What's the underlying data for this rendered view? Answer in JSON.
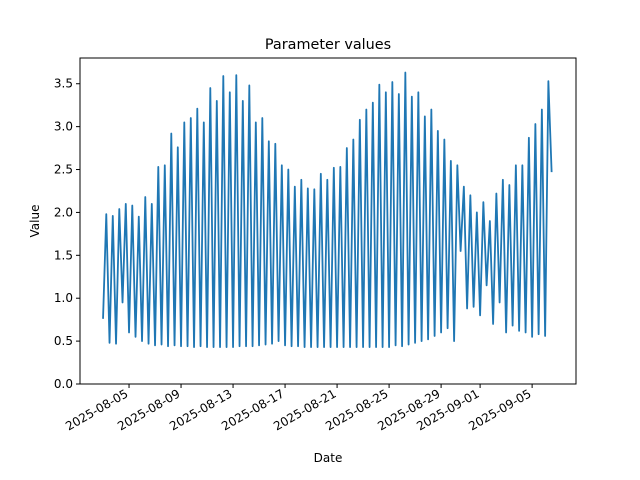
{
  "chart_data": {
    "type": "line",
    "title": "Parameter values",
    "x_label": "Date",
    "y_label": "Value",
    "xlim": [
      "2025-08-01 05:30",
      "2025-09-08 09:00"
    ],
    "xticks": [
      "2025-08-05",
      "2025-08-09",
      "2025-08-13",
      "2025-08-17",
      "2025-08-21",
      "2025-08-25",
      "2025-08-29",
      "2025-09-01",
      "2025-09-05"
    ],
    "ylim": [
      0,
      3.8
    ],
    "yticks": [
      {
        "value": 0,
        "label": "0.0"
      },
      0.5,
      {
        "value": 1,
        "label": "1.0"
      },
      1.5,
      {
        "value": 2,
        "label": "2.0"
      },
      2.5,
      {
        "value": 3,
        "label": "3.0"
      },
      3.5
    ],
    "series": [
      {
        "color": "#1f77b4",
        "x": [
          "2025-08-03 00:00",
          "2025-08-03 06:00",
          "2025-08-03 12:00",
          "2025-08-03 18:00",
          "2025-08-04 00:00",
          "2025-08-04 06:00",
          "2025-08-04 12:00",
          "2025-08-04 18:00",
          "2025-08-05 00:00",
          "2025-08-05 06:00",
          "2025-08-05 12:00",
          "2025-08-05 18:00",
          "2025-08-06 00:00",
          "2025-08-06 06:00",
          "2025-08-06 12:00",
          "2025-08-06 18:00",
          "2025-08-07 00:00",
          "2025-08-07 06:00",
          "2025-08-07 12:00",
          "2025-08-07 18:00",
          "2025-08-08 00:00",
          "2025-08-08 06:00",
          "2025-08-08 12:00",
          "2025-08-08 18:00",
          "2025-08-09 00:00",
          "2025-08-09 06:00",
          "2025-08-09 12:00",
          "2025-08-09 18:00",
          "2025-08-10 00:00",
          "2025-08-10 06:00",
          "2025-08-10 12:00",
          "2025-08-10 18:00",
          "2025-08-11 00:00",
          "2025-08-11 06:00",
          "2025-08-11 12:00",
          "2025-08-11 18:00",
          "2025-08-12 00:00",
          "2025-08-12 06:00",
          "2025-08-12 12:00",
          "2025-08-12 18:00",
          "2025-08-13 00:00",
          "2025-08-13 06:00",
          "2025-08-13 12:00",
          "2025-08-13 18:00",
          "2025-08-14 00:00",
          "2025-08-14 06:00",
          "2025-08-14 12:00",
          "2025-08-14 18:00",
          "2025-08-15 00:00",
          "2025-08-15 06:00",
          "2025-08-15 12:00",
          "2025-08-15 18:00",
          "2025-08-16 00:00",
          "2025-08-16 06:00",
          "2025-08-16 12:00",
          "2025-08-16 18:00",
          "2025-08-17 00:00",
          "2025-08-17 06:00",
          "2025-08-17 12:00",
          "2025-08-17 18:00",
          "2025-08-18 00:00",
          "2025-08-18 06:00",
          "2025-08-18 12:00",
          "2025-08-18 18:00",
          "2025-08-19 00:00",
          "2025-08-19 06:00",
          "2025-08-19 12:00",
          "2025-08-19 18:00",
          "2025-08-20 00:00",
          "2025-08-20 06:00",
          "2025-08-20 12:00",
          "2025-08-20 18:00",
          "2025-08-21 00:00",
          "2025-08-21 06:00",
          "2025-08-21 12:00",
          "2025-08-21 18:00",
          "2025-08-22 00:00",
          "2025-08-22 06:00",
          "2025-08-22 12:00",
          "2025-08-22 18:00",
          "2025-08-23 00:00",
          "2025-08-23 06:00",
          "2025-08-23 12:00",
          "2025-08-23 18:00",
          "2025-08-24 00:00",
          "2025-08-24 06:00",
          "2025-08-24 12:00",
          "2025-08-24 18:00",
          "2025-08-25 00:00",
          "2025-08-25 06:00",
          "2025-08-25 12:00",
          "2025-08-25 18:00",
          "2025-08-26 00:00",
          "2025-08-26 06:00",
          "2025-08-26 12:00",
          "2025-08-26 18:00",
          "2025-08-27 00:00",
          "2025-08-27 06:00",
          "2025-08-27 12:00",
          "2025-08-27 18:00",
          "2025-08-28 00:00",
          "2025-08-28 06:00",
          "2025-08-28 12:00",
          "2025-08-28 18:00",
          "2025-08-29 00:00",
          "2025-08-29 06:00",
          "2025-08-29 12:00",
          "2025-08-29 18:00",
          "2025-08-30 00:00",
          "2025-08-30 06:00",
          "2025-08-30 12:00",
          "2025-08-30 18:00",
          "2025-08-31 00:00",
          "2025-08-31 06:00",
          "2025-08-31 12:00",
          "2025-08-31 18:00",
          "2025-09-01 00:00",
          "2025-09-01 06:00",
          "2025-09-01 12:00",
          "2025-09-01 18:00",
          "2025-09-02 00:00",
          "2025-09-02 06:00",
          "2025-09-02 12:00",
          "2025-09-02 18:00",
          "2025-09-03 00:00",
          "2025-09-03 06:00",
          "2025-09-03 12:00",
          "2025-09-03 18:00",
          "2025-09-04 00:00",
          "2025-09-04 06:00",
          "2025-09-04 12:00",
          "2025-09-04 18:00",
          "2025-09-05 00:00",
          "2025-09-05 06:00",
          "2025-09-05 12:00",
          "2025-09-05 18:00",
          "2025-09-06 00:00",
          "2025-09-06 06:00",
          "2025-09-06 12:00"
        ],
        "values": [
          0.76,
          1.98,
          0.48,
          1.96,
          0.47,
          2.04,
          0.95,
          2.1,
          0.6,
          2.08,
          0.55,
          1.95,
          0.5,
          2.18,
          0.47,
          2.1,
          0.45,
          2.53,
          0.46,
          2.55,
          0.44,
          2.92,
          0.45,
          2.76,
          0.44,
          3.05,
          0.44,
          3.1,
          0.43,
          3.21,
          0.44,
          3.05,
          0.43,
          3.45,
          0.43,
          3.3,
          0.43,
          3.59,
          0.43,
          3.4,
          0.43,
          3.6,
          0.44,
          3.3,
          0.44,
          3.48,
          0.44,
          3.05,
          0.45,
          3.1,
          0.46,
          2.83,
          0.47,
          2.8,
          0.5,
          2.55,
          0.45,
          2.5,
          0.44,
          2.3,
          0.44,
          2.38,
          0.43,
          2.28,
          0.43,
          2.27,
          0.43,
          2.45,
          0.43,
          2.38,
          0.43,
          2.52,
          0.43,
          2.53,
          0.43,
          2.75,
          0.43,
          2.85,
          0.43,
          3.08,
          0.43,
          3.2,
          0.43,
          3.28,
          0.43,
          3.49,
          0.43,
          3.4,
          0.43,
          3.52,
          0.45,
          3.38,
          0.44,
          3.63,
          0.46,
          3.35,
          0.48,
          3.4,
          0.5,
          3.12,
          0.52,
          3.2,
          0.56,
          2.95,
          0.6,
          2.85,
          0.65,
          2.6,
          0.5,
          2.55,
          1.55,
          2.3,
          0.88,
          2.2,
          0.9,
          2.0,
          0.8,
          2.12,
          1.15,
          1.9,
          0.7,
          2.22,
          0.95,
          2.38,
          0.6,
          2.32,
          0.68,
          2.55,
          0.62,
          2.55,
          0.6,
          2.87,
          0.55,
          3.03,
          0.58,
          3.2,
          0.56,
          3.53,
          2.47
        ]
      }
    ]
  }
}
